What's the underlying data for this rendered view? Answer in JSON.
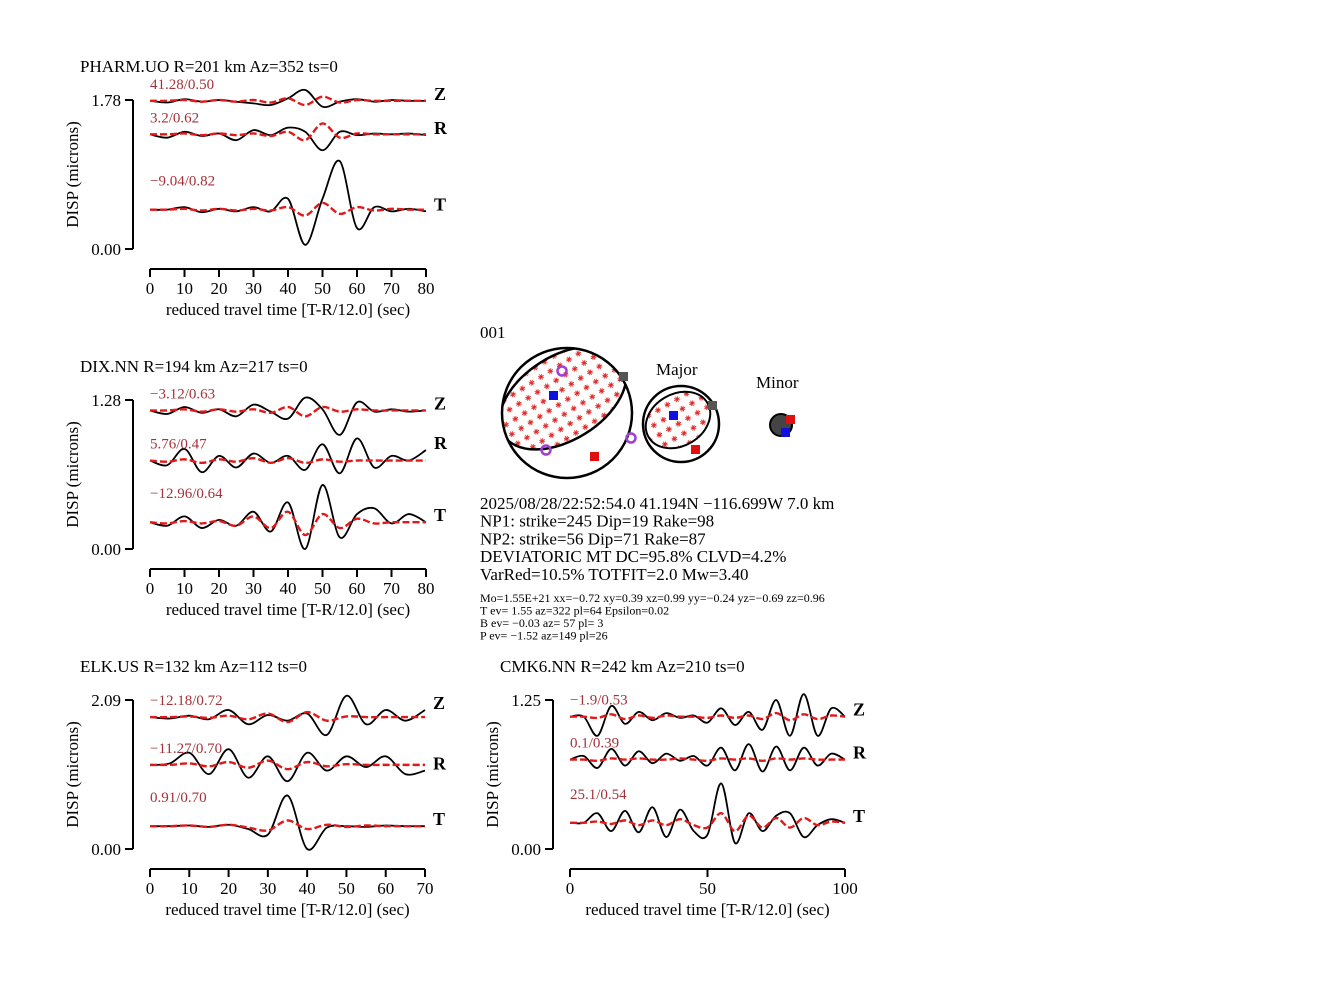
{
  "chart_data": [
    {
      "type": "line",
      "title": "PHARM.UO R=201 km Az=352 ts=0",
      "ylabel": "DISP (microns)",
      "xlabel": "reduced travel time [T-R/12.0] (sec)",
      "xlim": [
        0,
        80
      ],
      "xticks": [
        0,
        10,
        20,
        30,
        40,
        50,
        60,
        70,
        80
      ],
      "ylim": [
        0,
        1.78
      ],
      "yticks": [
        {
          "value": 0,
          "label": "0.00"
        },
        1.78
      ],
      "x": [
        0,
        5,
        10,
        15,
        20,
        25,
        30,
        35,
        40,
        45,
        50,
        55,
        60,
        65,
        70,
        75,
        80
      ],
      "traces": [
        {
          "component": "Z",
          "annotation": "41.28/0.50",
          "observed": [
            1.77,
            1.75,
            1.79,
            1.76,
            1.78,
            1.76,
            1.74,
            1.72,
            1.8,
            1.9,
            1.7,
            1.76,
            1.79,
            1.76,
            1.78,
            1.77,
            1.77
          ],
          "synthetic": [
            1.77,
            1.77,
            1.78,
            1.76,
            1.78,
            1.76,
            1.78,
            1.75,
            1.8,
            1.72,
            1.82,
            1.75,
            1.78,
            1.77,
            1.77,
            1.77,
            1.77
          ]
        },
        {
          "component": "R",
          "annotation": "3.2/0.62",
          "observed": [
            1.37,
            1.33,
            1.4,
            1.35,
            1.38,
            1.3,
            1.42,
            1.36,
            1.45,
            1.4,
            1.18,
            1.4,
            1.36,
            1.38,
            1.37,
            1.38,
            1.36
          ],
          "synthetic": [
            1.37,
            1.37,
            1.38,
            1.36,
            1.38,
            1.36,
            1.38,
            1.35,
            1.4,
            1.3,
            1.5,
            1.33,
            1.38,
            1.37,
            1.37,
            1.37,
            1.37
          ]
        },
        {
          "component": "T",
          "annotation": "−9.04/0.82",
          "observed": [
            0.47,
            0.47,
            0.5,
            0.44,
            0.48,
            0.45,
            0.5,
            0.45,
            0.6,
            0.05,
            0.6,
            1.05,
            0.25,
            0.5,
            0.45,
            0.48,
            0.45
          ],
          "synthetic": [
            0.47,
            0.47,
            0.48,
            0.46,
            0.48,
            0.46,
            0.48,
            0.46,
            0.5,
            0.4,
            0.55,
            0.42,
            0.5,
            0.46,
            0.48,
            0.47,
            0.47
          ]
        }
      ]
    },
    {
      "type": "line",
      "title": "DIX.NN R=194 km Az=217 ts=0",
      "ylabel": "DISP (microns)",
      "xlabel": "reduced travel time [T-R/12.0] (sec)",
      "xlim": [
        0,
        80
      ],
      "xticks": [
        0,
        10,
        20,
        30,
        40,
        50,
        60,
        70,
        80
      ],
      "ylim": [
        0,
        1.28
      ],
      "yticks": [
        {
          "value": 0,
          "label": "0.00"
        },
        1.28
      ],
      "x": [
        0,
        5,
        10,
        15,
        20,
        25,
        30,
        35,
        40,
        45,
        50,
        55,
        60,
        65,
        70,
        75,
        80
      ],
      "traces": [
        {
          "component": "Z",
          "annotation": "−3.12/0.63",
          "observed": [
            1.19,
            1.16,
            1.22,
            1.17,
            1.2,
            1.14,
            1.24,
            1.18,
            1.12,
            1.3,
            1.2,
            0.98,
            1.26,
            1.18,
            1.2,
            1.18,
            1.19
          ],
          "synthetic": [
            1.19,
            1.19,
            1.2,
            1.18,
            1.2,
            1.18,
            1.2,
            1.17,
            1.22,
            1.14,
            1.22,
            1.18,
            1.2,
            1.19,
            1.19,
            1.19,
            1.19
          ]
        },
        {
          "component": "R",
          "annotation": "5.76/0.47",
          "observed": [
            0.76,
            0.72,
            0.86,
            0.66,
            0.8,
            0.7,
            0.82,
            0.74,
            0.8,
            0.68,
            0.9,
            0.65,
            0.95,
            0.7,
            0.8,
            0.76,
            0.85
          ],
          "synthetic": [
            0.76,
            0.75,
            0.77,
            0.74,
            0.77,
            0.75,
            0.78,
            0.74,
            0.78,
            0.74,
            0.77,
            0.75,
            0.76,
            0.76,
            0.76,
            0.76,
            0.76
          ]
        },
        {
          "component": "T",
          "annotation": "−12.96/0.64",
          "observed": [
            0.23,
            0.2,
            0.28,
            0.18,
            0.25,
            0.2,
            0.32,
            0.15,
            0.4,
            0.0,
            0.55,
            0.1,
            0.3,
            0.35,
            0.22,
            0.3,
            0.23
          ],
          "synthetic": [
            0.23,
            0.22,
            0.24,
            0.22,
            0.24,
            0.2,
            0.28,
            0.18,
            0.32,
            0.12,
            0.3,
            0.18,
            0.26,
            0.22,
            0.23,
            0.23,
            0.23
          ]
        }
      ]
    },
    {
      "type": "line",
      "title": "ELK.US R=132 km Az=112 ts=0",
      "ylabel": "DISP (microns)",
      "xlabel": "reduced travel time [T-R/12.0] (sec)",
      "xlim": [
        0,
        70
      ],
      "xticks": [
        0,
        10,
        20,
        30,
        40,
        50,
        60,
        70
      ],
      "ylim": [
        0,
        2.09
      ],
      "yticks": [
        {
          "value": 0,
          "label": "0.00"
        },
        2.09
      ],
      "x": [
        0,
        5,
        10,
        15,
        20,
        25,
        30,
        35,
        40,
        45,
        50,
        55,
        60,
        65,
        70
      ],
      "traces": [
        {
          "component": "Z",
          "annotation": "−12.18/0.72",
          "observed": [
            1.85,
            1.83,
            1.87,
            1.82,
            1.95,
            1.75,
            1.88,
            1.8,
            1.9,
            1.6,
            2.15,
            1.75,
            1.95,
            1.8,
            1.95
          ],
          "synthetic": [
            1.85,
            1.85,
            1.86,
            1.84,
            1.87,
            1.82,
            1.9,
            1.78,
            1.92,
            1.8,
            1.86,
            1.85,
            1.85,
            1.85,
            1.85
          ]
        },
        {
          "component": "R",
          "annotation": "−11.27/0.70",
          "observed": [
            1.18,
            1.2,
            1.35,
            1.05,
            1.4,
            1.0,
            1.3,
            0.95,
            1.35,
            1.1,
            1.3,
            1.15,
            1.3,
            1.05,
            1.1
          ],
          "synthetic": [
            1.18,
            1.18,
            1.2,
            1.16,
            1.22,
            1.14,
            1.24,
            1.12,
            1.22,
            1.16,
            1.19,
            1.18,
            1.18,
            1.18,
            1.18
          ]
        },
        {
          "component": "T",
          "annotation": "0.91/0.70",
          "observed": [
            0.32,
            0.32,
            0.33,
            0.31,
            0.34,
            0.28,
            0.2,
            0.75,
            0.0,
            0.3,
            0.32,
            0.31,
            0.33,
            0.32,
            0.32
          ],
          "synthetic": [
            0.32,
            0.32,
            0.33,
            0.31,
            0.34,
            0.3,
            0.26,
            0.4,
            0.28,
            0.34,
            0.31,
            0.33,
            0.32,
            0.32,
            0.32
          ]
        }
      ]
    },
    {
      "type": "line",
      "title": "CMK6.NN R=242 km Az=210 ts=0",
      "ylabel": "DISP (microns)",
      "xlabel": "reduced travel time [T-R/12.0] (sec)",
      "xlim": [
        0,
        100
      ],
      "xticks": [
        0,
        50,
        100
      ],
      "ylim": [
        0,
        1.25
      ],
      "yticks": [
        {
          "value": 0,
          "label": "0.00"
        },
        1.25
      ],
      "x": [
        0,
        5,
        10,
        15,
        20,
        25,
        30,
        35,
        40,
        45,
        50,
        55,
        60,
        65,
        70,
        75,
        80,
        85,
        90,
        95,
        100
      ],
      "traces": [
        {
          "component": "Z",
          "annotation": "−1.9/0.53",
          "observed": [
            1.11,
            1.11,
            0.95,
            1.2,
            1.05,
            1.15,
            1.08,
            1.14,
            1.1,
            1.12,
            1.06,
            1.18,
            1.04,
            1.15,
            1.0,
            1.25,
            0.95,
            1.3,
            0.95,
            1.18,
            1.11
          ],
          "synthetic": [
            1.11,
            1.11,
            1.1,
            1.13,
            1.09,
            1.12,
            1.1,
            1.12,
            1.11,
            1.11,
            1.1,
            1.12,
            1.1,
            1.12,
            1.09,
            1.14,
            1.08,
            1.13,
            1.09,
            1.12,
            1.11
          ]
        },
        {
          "component": "R",
          "annotation": "0.1/0.39",
          "observed": [
            0.75,
            0.78,
            0.68,
            0.84,
            0.7,
            0.82,
            0.72,
            0.8,
            0.74,
            0.78,
            0.7,
            0.85,
            0.66,
            0.88,
            0.65,
            0.86,
            0.66,
            0.85,
            0.7,
            0.8,
            0.75
          ],
          "synthetic": [
            0.75,
            0.75,
            0.74,
            0.76,
            0.75,
            0.76,
            0.75,
            0.75,
            0.76,
            0.75,
            0.74,
            0.76,
            0.75,
            0.76,
            0.74,
            0.76,
            0.75,
            0.76,
            0.75,
            0.75,
            0.75
          ]
        },
        {
          "component": "T",
          "annotation": "25.1/0.54",
          "observed": [
            0.22,
            0.22,
            0.3,
            0.15,
            0.32,
            0.14,
            0.35,
            0.1,
            0.33,
            0.15,
            0.12,
            0.55,
            0.05,
            0.3,
            0.15,
            0.28,
            0.3,
            0.1,
            0.2,
            0.25,
            0.22
          ],
          "synthetic": [
            0.22,
            0.22,
            0.23,
            0.21,
            0.24,
            0.2,
            0.24,
            0.2,
            0.25,
            0.2,
            0.18,
            0.3,
            0.15,
            0.28,
            0.18,
            0.26,
            0.18,
            0.26,
            0.2,
            0.23,
            0.22
          ]
        }
      ]
    }
  ],
  "mechanism": {
    "id": "001",
    "major_label": "Major",
    "minor_label": "Minor",
    "lines": [
      "2025/08/28/22:52:54.0 41.194N −116.699W 7.0 km",
      "NP1: strike=245 Dip=19 Rake=98",
      "NP2: strike=56 Dip=71 Rake=87",
      "DEVIATORIC MT DC=95.8% CLVD=4.2%",
      "VarRed=10.5% TOTFIT=2.0 Mw=3.40"
    ],
    "details": [
      "Mo=1.55E+21 xx=−0.72 xy=0.39 xz=0.99 yy=−0.24 yz=−0.69 zz=0.96",
      "T ev=  1.55 az=322 pl=64 Epsilon=0.02",
      "B ev= −0.03 az= 57 pl= 3",
      "P ev= −1.52 az=149 pl=26"
    ]
  }
}
